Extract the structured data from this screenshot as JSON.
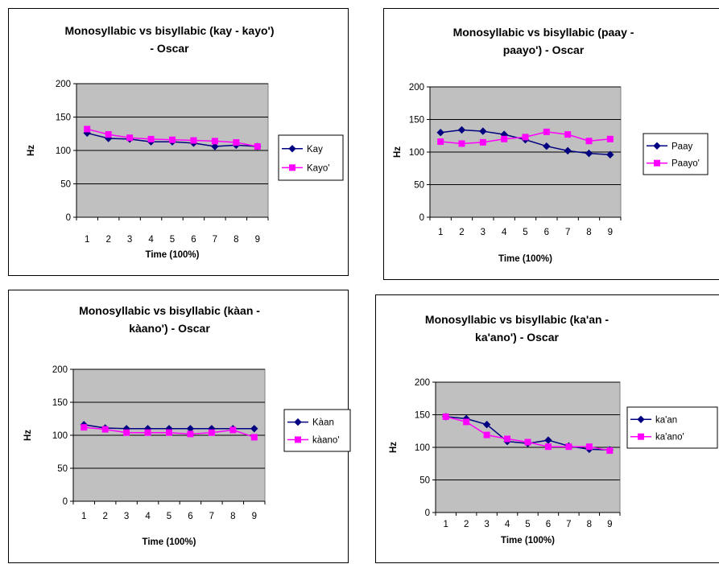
{
  "colors": {
    "plot_area": "#c0c0c0",
    "series_1": "#000080",
    "series_2": "#ff00ff",
    "gridline": "#000000"
  },
  "chart_data": [
    {
      "type": "line",
      "title_lines": [
        "Monosyllabic vs bisyllabic (kay - kayo')",
        "- Oscar"
      ],
      "xlabel": "Time (100%)",
      "ylabel": "Hz",
      "categories": [
        "1",
        "2",
        "3",
        "4",
        "5",
        "6",
        "7",
        "8",
        "9"
      ],
      "yticks": [
        "0",
        "50",
        "100",
        "150",
        "200"
      ],
      "ylim": [
        0,
        200
      ],
      "grid": true,
      "legend_position": "right",
      "series": [
        {
          "name": "Kay",
          "marker": "diamond",
          "values": [
            126,
            118,
            117,
            113,
            113,
            111,
            106,
            108,
            106
          ]
        },
        {
          "name": "Kayo'",
          "marker": "square",
          "values": [
            132,
            124,
            119,
            117,
            116,
            115,
            114,
            112,
            106
          ]
        }
      ]
    },
    {
      "type": "line",
      "title_lines": [
        "Monosyllabic vs bisyllabic (paay -",
        "paayo') - Oscar"
      ],
      "xlabel": "Time (100%)",
      "ylabel": "Hz",
      "categories": [
        "1",
        "2",
        "3",
        "4",
        "5",
        "6",
        "7",
        "8",
        "9"
      ],
      "yticks": [
        "0",
        "50",
        "100",
        "150",
        "200"
      ],
      "ylim": [
        0,
        200
      ],
      "grid": true,
      "legend_position": "right",
      "series": [
        {
          "name": "Paay",
          "marker": "diamond",
          "values": [
            130,
            134,
            132,
            127,
            119,
            109,
            102,
            98,
            96
          ]
        },
        {
          "name": "Paayo'",
          "marker": "square",
          "values": [
            116,
            113,
            115,
            120,
            123,
            131,
            127,
            117,
            120
          ]
        }
      ]
    },
    {
      "type": "line",
      "title_lines": [
        "Monosyllabic vs bisyllabic (kàan -",
        "kàano') - Oscar"
      ],
      "xlabel": "Time (100%)",
      "ylabel": "Hz",
      "categories": [
        "1",
        "2",
        "3",
        "4",
        "5",
        "6",
        "7",
        "8",
        "9"
      ],
      "yticks": [
        "0",
        "50",
        "100",
        "150",
        "200"
      ],
      "ylim": [
        0,
        200
      ],
      "grid": true,
      "legend_position": "right",
      "series": [
        {
          "name": "Kàan",
          "marker": "diamond",
          "values": [
            116,
            111,
            110,
            110,
            110,
            110,
            110,
            110,
            110
          ]
        },
        {
          "name": "kàano'",
          "marker": "square",
          "values": [
            112,
            109,
            104,
            104,
            104,
            102,
            104,
            108,
            97
          ]
        }
      ]
    },
    {
      "type": "line",
      "title_lines": [
        "Monosyllabic vs bisyllabic (ka'an -",
        "ka'ano') - Oscar"
      ],
      "xlabel": "Time (100%)",
      "ylabel": "Hz",
      "categories": [
        "1",
        "2",
        "3",
        "4",
        "5",
        "6",
        "7",
        "8",
        "9"
      ],
      "yticks": [
        "0",
        "50",
        "100",
        "150",
        "200"
      ],
      "ylim": [
        0,
        200
      ],
      "grid": true,
      "legend_position": "right",
      "series": [
        {
          "name": "ka'an",
          "marker": "diamond",
          "values": [
            147,
            144,
            135,
            109,
            106,
            111,
            102,
            97,
            96
          ]
        },
        {
          "name": "ka'ano'",
          "marker": "square",
          "values": [
            147,
            139,
            119,
            113,
            108,
            101,
            101,
            101,
            95
          ]
        }
      ]
    }
  ]
}
